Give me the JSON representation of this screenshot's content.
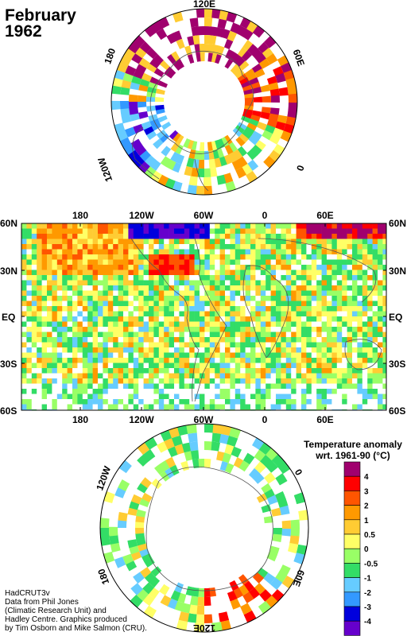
{
  "title": {
    "line1": "February",
    "line2": "1962"
  },
  "north_polar_labels": {
    "top": "120E",
    "left": "180",
    "right": "60E",
    "lower_left": "120W",
    "lower_right": "0"
  },
  "map_lon_labels": [
    "180",
    "120W",
    "60W",
    "0",
    "60E"
  ],
  "map_lat_labels": [
    "60N",
    "30N",
    "EQ",
    "30S",
    "60S"
  ],
  "south_polar_labels": {
    "upper_left": "120W",
    "upper_right": "0",
    "lower_left": "180",
    "lower_right": "60E",
    "bottom": "120E"
  },
  "legend": {
    "title_line1": "Temperature anomaly",
    "title_line2": "wrt. 1961-90  (°C)",
    "ticks": [
      "4",
      "3",
      "2",
      "1",
      "0.5",
      "0",
      "-0.5",
      "-1",
      "-2",
      "-3",
      "-4"
    ],
    "colors": [
      "#a0006e",
      "#ff0000",
      "#ff5500",
      "#ff9900",
      "#ffcc33",
      "#ffff66",
      "#99ff66",
      "#33dd66",
      "#66ccff",
      "#3399ff",
      "#0000dd",
      "#6600cc"
    ]
  },
  "credits": [
    "HadCRUT3v",
    "Data from Phil Jones",
    "(Climatic Research Unit) and",
    "Hadley Centre.  Graphics produced",
    "by Tim Osborn and Mike Salmon (CRU)."
  ]
}
